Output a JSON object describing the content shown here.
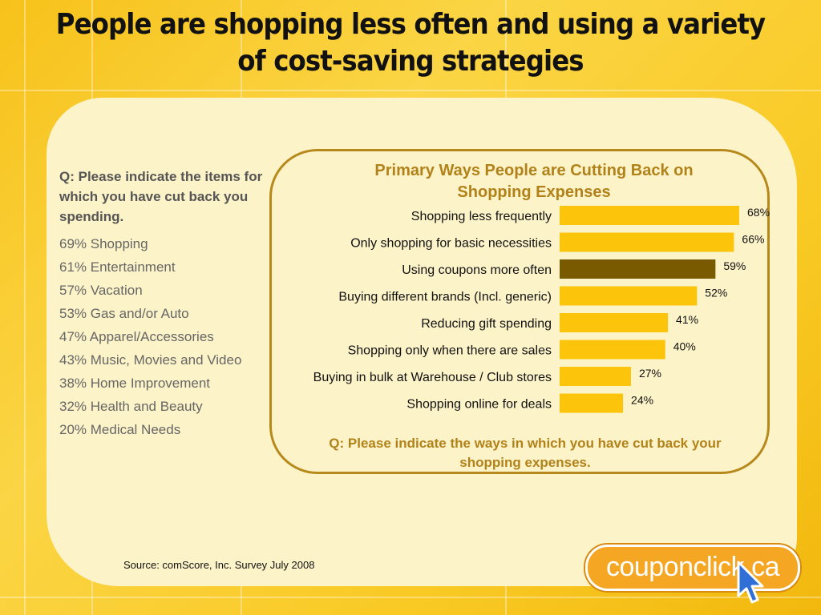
{
  "title": "People are shopping less often and using a variety of cost-saving strategies",
  "left_question": "Q: Please indicate the items for which you have cut back you spending.",
  "categories_list": [
    "69%  Shopping",
    "61%  Entertainment",
    "57%  Vacation",
    "53%  Gas and/or Auto",
    "47% Apparel/Accessories",
    "43%  Music, Movies and Video",
    "38% Home Improvement",
    "32% Health and Beauty",
    "20% Medical Needs"
  ],
  "chart_footer": "Q: Please indicate the ways in which you have cut back your shopping expenses.",
  "source": "Source:  comScore, Inc. Survey July 2008",
  "logo": {
    "text": "couponclick.ca",
    "icon": "cursor-arrow-icon"
  },
  "colors": {
    "bar": "#fdc40c",
    "bar_highlight": "#7a5a00",
    "accent_text": "#b2821a"
  },
  "chart_data": {
    "type": "bar",
    "orientation": "horizontal",
    "title": "Primary Ways People are Cutting Back on Shopping Expenses",
    "categories": [
      "Shopping less frequently",
      "Only shopping for basic necessities",
      "Using coupons more often",
      "Buying different brands (Incl. generic)",
      "Reducing gift spending",
      "Shopping only when there are sales",
      "Buying in bulk at Warehouse / Club stores",
      "Shopping online for deals"
    ],
    "values": [
      68,
      66,
      59,
      52,
      41,
      40,
      27,
      24
    ],
    "value_labels": [
      "68%",
      "66%",
      "59%",
      "52%",
      "41%",
      "40%",
      "27%",
      "24%"
    ],
    "highlight_index": 2,
    "xlim": [
      0,
      68
    ],
    "grid": false,
    "legend": "none"
  }
}
